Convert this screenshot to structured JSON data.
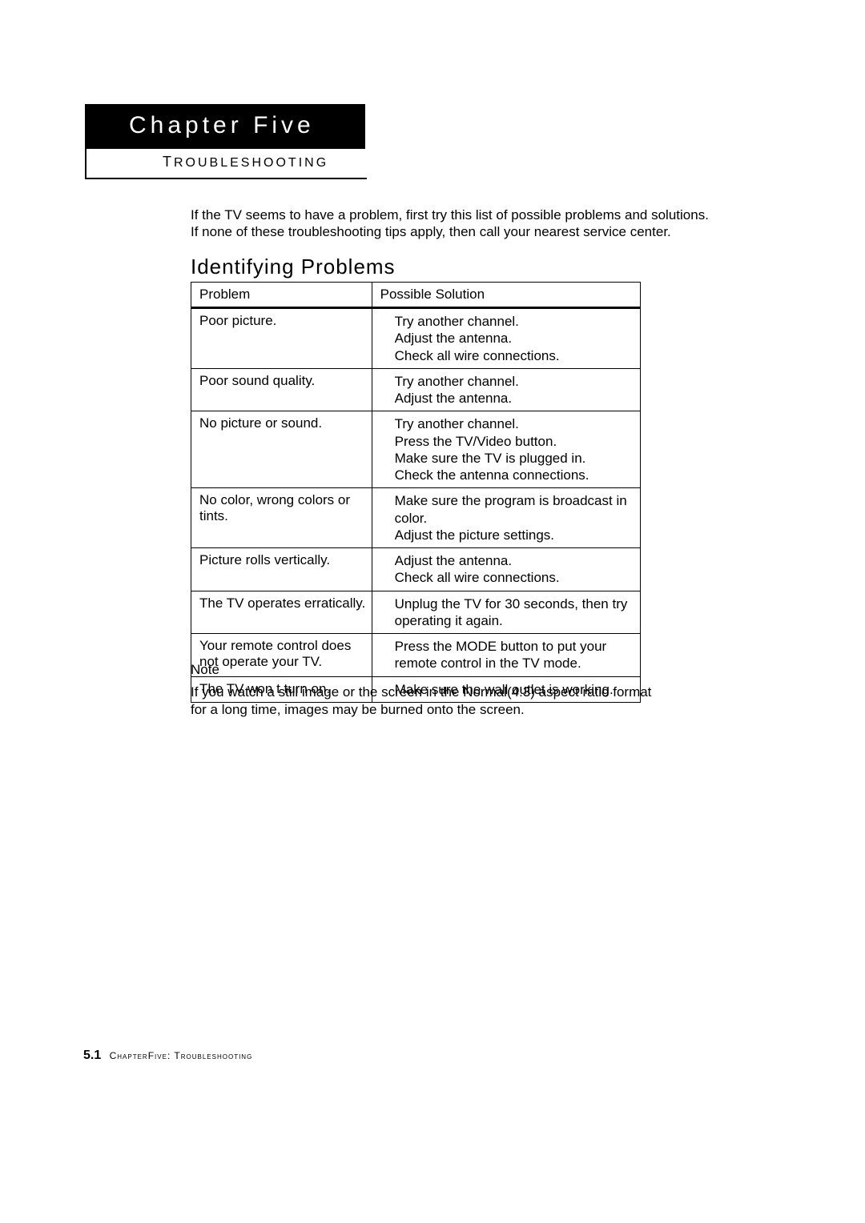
{
  "chapter": {
    "title": "Chapter Five",
    "subtitle_first": "T",
    "subtitle_rest": "ROUBLESHOOTING"
  },
  "intro_text": "If the TV seems to have a problem, first try this list of possible problems and solutions. If none of these troubleshooting tips apply, then call your nearest service center.",
  "section_heading": "Identifying Problems",
  "table": {
    "header_problem": "Problem",
    "header_solution": "Possible Solution",
    "rows": [
      {
        "problem": "Poor picture.",
        "solutions": [
          "Try another channel.",
          "Adjust the antenna.",
          "Check all wire connections."
        ]
      },
      {
        "problem": "Poor sound quality.",
        "solutions": [
          "Try another channel.",
          "Adjust the antenna."
        ]
      },
      {
        "problem": "No picture or sound.",
        "solutions": [
          "Try another channel.",
          "Press the TV/Video button.",
          "Make sure the TV is plugged in.",
          "Check the antenna connections."
        ]
      },
      {
        "problem": "No color, wrong colors or tints.",
        "solutions": [
          "Make sure the program is broadcast in color.",
          "Adjust the picture settings."
        ]
      },
      {
        "problem": "Picture rolls vertically.",
        "solutions": [
          "Adjust the antenna.",
          "Check all wire connections."
        ]
      },
      {
        "problem": "The TV operates erratically.",
        "solutions": [
          "Unplug the TV for 30 seconds, then try operating it again."
        ]
      },
      {
        "problem": "Your remote control does not operate your TV.",
        "solutions": [
          "Press the  MODE  button to put your remote control in the  TV  mode."
        ]
      },
      {
        "problem": "The TV won t turn on.",
        "solutions": [
          "Make sure the wall outlet is working."
        ]
      }
    ]
  },
  "note": {
    "label": "Note",
    "body": "If you watch a still image or the screen in the Normal(4:3) aspect ratio format for a long time, images may be burned onto the screen."
  },
  "footer": {
    "page_number": "5.1",
    "chapter_word": "Chapter",
    "chapter_num": "Five",
    "sep": ": ",
    "section": "Troubleshooting"
  }
}
